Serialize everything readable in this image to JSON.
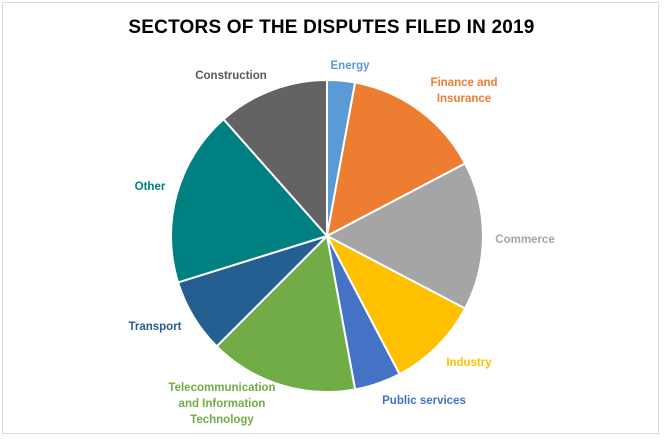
{
  "chart_data": {
    "type": "pie",
    "title": "SECTORS OF THE DISPUTES FILED IN 2019",
    "slices": [
      {
        "label": "Energy",
        "value": 3,
        "color": "#5b9bd5",
        "label_color": "#5b9bd5"
      },
      {
        "label": "Finance and Insurance",
        "value": 15,
        "color": "#ed7d31",
        "label_color": "#ed7d31"
      },
      {
        "label": "Commerce",
        "value": 16,
        "color": "#a5a5a5",
        "label_color": "#a5a5a5"
      },
      {
        "label": "Industry",
        "value": 10,
        "color": "#ffc000",
        "label_color": "#ffc000"
      },
      {
        "label": "Public services",
        "value": 5,
        "color": "#4472c4",
        "label_color": "#4472c4"
      },
      {
        "label": "Telecommunication and Information Technology",
        "value": 16,
        "color": "#70ad47",
        "label_color": "#70ad47"
      },
      {
        "label": "Transport",
        "value": 8,
        "color": "#255e91",
        "label_color": "#255e91"
      },
      {
        "label": "Other",
        "value": 19,
        "color": "#008080",
        "label_color": "#008080"
      },
      {
        "label": "Construction",
        "value": 12,
        "color": "#636363",
        "label_color": "#595959"
      }
    ],
    "legend": "none"
  }
}
